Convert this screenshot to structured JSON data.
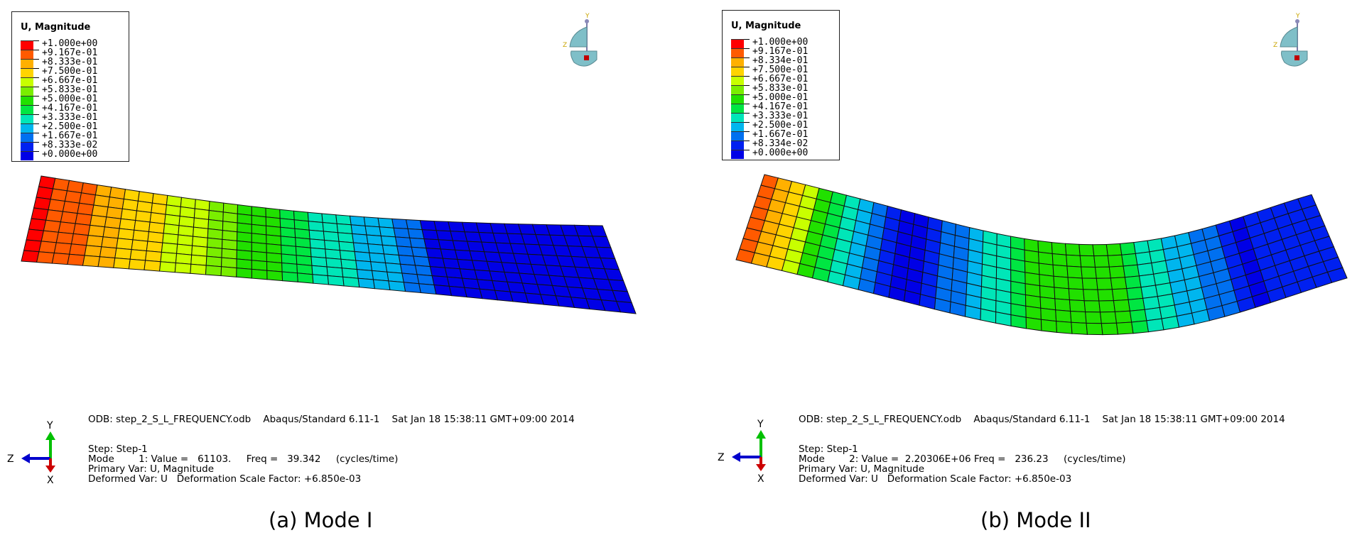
{
  "panels": [
    {
      "legend": {
        "title": "U, Magnitude",
        "labels": [
          "+1.000e+00",
          "+9.167e-01",
          "+8.333e-01",
          "+7.500e-01",
          "+6.667e-01",
          "+5.833e-01",
          "+5.000e-01",
          "+4.167e-01",
          "+3.333e-01",
          "+2.500e-01",
          "+1.667e-01",
          "+8.333e-02",
          "+0.000e+00"
        ]
      },
      "info": {
        "odb": "ODB: step_2_S_L_FREQUENCY.odb    Abaqus/Standard 6.11-1    Sat Jan 18 15:38:11 GMT+09:00 2014",
        "step": "Step: Step-1",
        "mode": "Mode        1: Value =   61103.     Freq =   39.342     (cycles/time)",
        "primary": "Primary Var: U, Magnitude",
        "deformed": "Deformed Var: U   Deformation Scale Factor: +6.850e-03"
      },
      "caption": "(a) Mode I"
    },
    {
      "legend": {
        "title": "U, Magnitude",
        "labels": [
          "+1.000e+00",
          "+9.167e-01",
          "+8.334e-01",
          "+7.500e-01",
          "+6.667e-01",
          "+5.833e-01",
          "+5.000e-01",
          "+4.167e-01",
          "+3.333e-01",
          "+2.500e-01",
          "+1.667e-01",
          "+8.334e-02",
          "+0.000e+00"
        ]
      },
      "info": {
        "odb": "ODB: step_2_S_L_FREQUENCY.odb    Abaqus/Standard 6.11-1    Sat Jan 18 15:38:11 GMT+09:00 2014",
        "step": "Step: Step-1",
        "mode": "Mode        2: Value =  2.20306E+06 Freq =   236.23     (cycles/time)",
        "primary": "Primary Var: U, Magnitude",
        "deformed": "Deformed Var: U   Deformation Scale Factor: +6.850e-03"
      },
      "caption": "(b) Mode II"
    }
  ],
  "triad": {
    "y": "Y",
    "z": "Z",
    "x": "X"
  },
  "colors": {
    "contour": [
      "#ff0000",
      "#ff5a00",
      "#ffb000",
      "#ffd400",
      "#c8ff00",
      "#7aee00",
      "#21e000",
      "#00e642",
      "#00e6b8",
      "#00b6ee",
      "#0070f0",
      "#0020f0",
      "#0000e6"
    ],
    "triad_y": "#00c000",
    "triad_z": "#0000cc",
    "triad_x": "#cc0000",
    "view_cube": "#7fbfc8"
  }
}
